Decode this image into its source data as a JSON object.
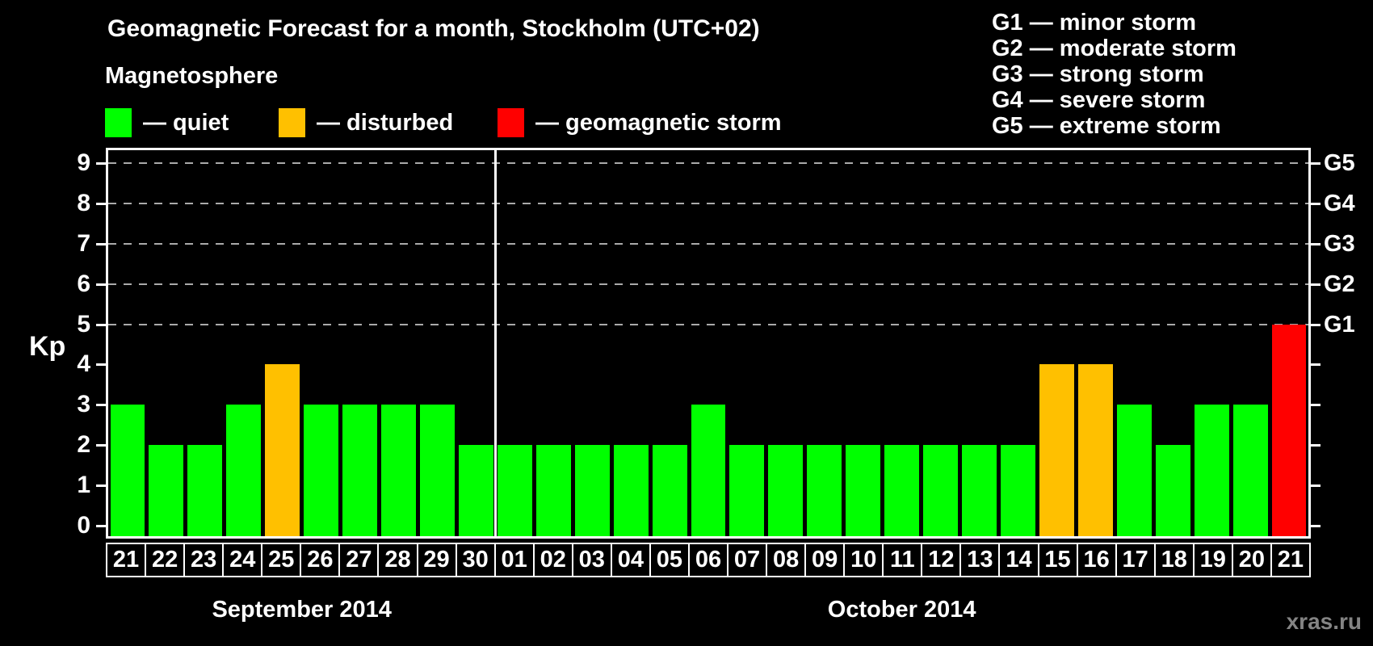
{
  "title": "Geomagnetic Forecast for a month, Stockholm (UTC+02)",
  "subtitle": "Magnetosphere",
  "legend": [
    {
      "status": "quiet",
      "label": "— quiet",
      "color": "#00ff00"
    },
    {
      "status": "disturbed",
      "label": "— disturbed",
      "color": "#ffc000"
    },
    {
      "status": "storm",
      "label": "— geomagnetic storm",
      "color": "#ff0000"
    }
  ],
  "g_legend": [
    "G1 — minor storm",
    "G2 — moderate storm",
    "G3 — strong storm",
    "G4 — severe storm",
    "G5 — extreme storm"
  ],
  "watermark": "xras.ru",
  "colors": {
    "quiet": "#00ff00",
    "disturbed": "#ffc000",
    "storm": "#ff0000",
    "background": "#000000",
    "axis": "#ffffff",
    "grid": "#aaaaaa",
    "watermark": "#848484"
  },
  "chart_data": {
    "type": "bar",
    "title": "Geomagnetic Forecast for a month, Stockholm (UTC+02)",
    "ylabel": "Kp",
    "ylim": [
      0,
      9
    ],
    "yticks": [
      0,
      1,
      2,
      3,
      4,
      5,
      6,
      7,
      8,
      9
    ],
    "grid": "horizontal dashed lines at Kp 5,6,7,8,9",
    "legend_position": "top",
    "right_axis": [
      {
        "label": "G1",
        "kp": 5
      },
      {
        "label": "G2",
        "kp": 6
      },
      {
        "label": "G3",
        "kp": 7
      },
      {
        "label": "G4",
        "kp": 8
      },
      {
        "label": "G5",
        "kp": 9
      }
    ],
    "months": [
      {
        "label": "September 2014",
        "days": [
          {
            "day": "21",
            "kp": 3,
            "status": "quiet"
          },
          {
            "day": "22",
            "kp": 2,
            "status": "quiet"
          },
          {
            "day": "23",
            "kp": 2,
            "status": "quiet"
          },
          {
            "day": "24",
            "kp": 3,
            "status": "quiet"
          },
          {
            "day": "25",
            "kp": 4,
            "status": "disturbed"
          },
          {
            "day": "26",
            "kp": 3,
            "status": "quiet"
          },
          {
            "day": "27",
            "kp": 3,
            "status": "quiet"
          },
          {
            "day": "28",
            "kp": 3,
            "status": "quiet"
          },
          {
            "day": "29",
            "kp": 3,
            "status": "quiet"
          },
          {
            "day": "30",
            "kp": 2,
            "status": "quiet"
          }
        ]
      },
      {
        "label": "October 2014",
        "days": [
          {
            "day": "01",
            "kp": 2,
            "status": "quiet"
          },
          {
            "day": "02",
            "kp": 2,
            "status": "quiet"
          },
          {
            "day": "03",
            "kp": 2,
            "status": "quiet"
          },
          {
            "day": "04",
            "kp": 2,
            "status": "quiet"
          },
          {
            "day": "05",
            "kp": 2,
            "status": "quiet"
          },
          {
            "day": "06",
            "kp": 3,
            "status": "quiet"
          },
          {
            "day": "07",
            "kp": 2,
            "status": "quiet"
          },
          {
            "day": "08",
            "kp": 2,
            "status": "quiet"
          },
          {
            "day": "09",
            "kp": 2,
            "status": "quiet"
          },
          {
            "day": "10",
            "kp": 2,
            "status": "quiet"
          },
          {
            "day": "11",
            "kp": 2,
            "status": "quiet"
          },
          {
            "day": "12",
            "kp": 2,
            "status": "quiet"
          },
          {
            "day": "13",
            "kp": 2,
            "status": "quiet"
          },
          {
            "day": "14",
            "kp": 2,
            "status": "quiet"
          },
          {
            "day": "15",
            "kp": 4,
            "status": "disturbed"
          },
          {
            "day": "16",
            "kp": 4,
            "status": "disturbed"
          },
          {
            "day": "17",
            "kp": 3,
            "status": "quiet"
          },
          {
            "day": "18",
            "kp": 2,
            "status": "quiet"
          },
          {
            "day": "19",
            "kp": 3,
            "status": "quiet"
          },
          {
            "day": "20",
            "kp": 3,
            "status": "quiet"
          },
          {
            "day": "21",
            "kp": 5,
            "status": "storm"
          }
        ]
      }
    ]
  }
}
